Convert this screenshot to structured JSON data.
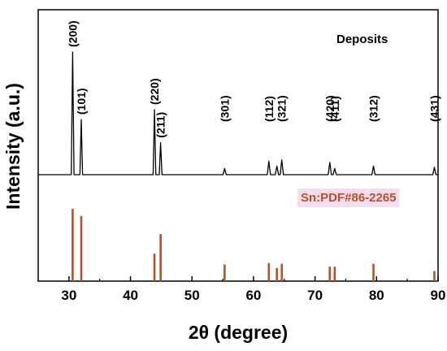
{
  "chart_data": {
    "type": "line",
    "xlabel": "2θ (degree)",
    "ylabel": "Intensity (a.u.)",
    "xlim": [
      25,
      90
    ],
    "x_ticks": [
      30,
      40,
      50,
      60,
      70,
      80,
      90
    ],
    "grid": false,
    "series": [
      {
        "name": "Deposits",
        "style": "diffraction-pattern",
        "color": "#000000",
        "peaks": [
          {
            "x": 30.6,
            "intensity": 100,
            "label": "(200)"
          },
          {
            "x": 32.0,
            "intensity": 45,
            "label": "(101)"
          },
          {
            "x": 43.9,
            "intensity": 53,
            "label": "(220)"
          },
          {
            "x": 44.9,
            "intensity": 26,
            "label": "(211)"
          },
          {
            "x": 55.3,
            "intensity": 5,
            "label": "(301)"
          },
          {
            "x": 62.5,
            "intensity": 11,
            "label": "(112)"
          },
          {
            "x": 63.8,
            "intensity": 7
          },
          {
            "x": 64.6,
            "intensity": 12,
            "label": "(321)"
          },
          {
            "x": 72.4,
            "intensity": 10,
            "label": "(420)"
          },
          {
            "x": 73.2,
            "intensity": 5,
            "label": "(411)"
          },
          {
            "x": 79.5,
            "intensity": 7,
            "label": "(312)"
          },
          {
            "x": 89.4,
            "intensity": 6,
            "label": "(431)"
          }
        ]
      },
      {
        "name": "Sn:PDF#86-2265",
        "style": "stick-pattern",
        "color": "#b5502a",
        "peaks": [
          {
            "x": 30.6,
            "intensity": 100
          },
          {
            "x": 32.0,
            "intensity": 90
          },
          {
            "x": 43.9,
            "intensity": 38
          },
          {
            "x": 44.9,
            "intensity": 65
          },
          {
            "x": 55.3,
            "intensity": 23
          },
          {
            "x": 62.5,
            "intensity": 25
          },
          {
            "x": 63.8,
            "intensity": 18
          },
          {
            "x": 64.6,
            "intensity": 24
          },
          {
            "x": 72.4,
            "intensity": 20
          },
          {
            "x": 73.2,
            "intensity": 20
          },
          {
            "x": 79.5,
            "intensity": 24
          },
          {
            "x": 89.4,
            "intensity": 14
          }
        ]
      }
    ],
    "panel_label": "Deposits",
    "reference_label": "Sn:PDF#86-2265",
    "reference_label_bg": "#f6dcef"
  }
}
